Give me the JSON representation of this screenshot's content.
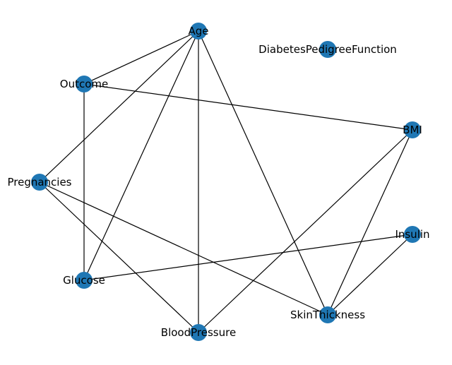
{
  "graph": {
    "node_color": "#1f77b4",
    "edge_color": "#000000",
    "nodes": [
      {
        "id": "Age",
        "label": "Age"
      },
      {
        "id": "DiabetesPedigreeFunction",
        "label": "DiabetesPedigreeFunction"
      },
      {
        "id": "Outcome",
        "label": "Outcome"
      },
      {
        "id": "BMI",
        "label": "BMI"
      },
      {
        "id": "Pregnancies",
        "label": "Pregnancies"
      },
      {
        "id": "Insulin",
        "label": "Insulin"
      },
      {
        "id": "Glucose",
        "label": "Glucose"
      },
      {
        "id": "SkinThickness",
        "label": "SkinThickness"
      },
      {
        "id": "BloodPressure",
        "label": "BloodPressure"
      }
    ],
    "edges": [
      [
        "Age",
        "Outcome"
      ],
      [
        "Age",
        "Pregnancies"
      ],
      [
        "Age",
        "Glucose"
      ],
      [
        "Age",
        "BloodPressure"
      ],
      [
        "Age",
        "SkinThickness"
      ],
      [
        "Outcome",
        "BMI"
      ],
      [
        "Outcome",
        "Glucose"
      ],
      [
        "Pregnancies",
        "BloodPressure"
      ],
      [
        "Pregnancies",
        "SkinThickness"
      ],
      [
        "BMI",
        "BloodPressure"
      ],
      [
        "BMI",
        "SkinThickness"
      ],
      [
        "Insulin",
        "Glucose"
      ],
      [
        "Insulin",
        "SkinThickness"
      ]
    ]
  }
}
